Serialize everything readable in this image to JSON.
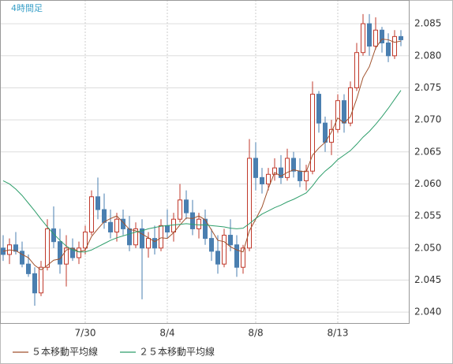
{
  "chart_data": {
    "type": "candlestick",
    "title": "4時間足",
    "categories": [
      null,
      null,
      null,
      null,
      null,
      null,
      null,
      null,
      null,
      null,
      null,
      null,
      null,
      "7/30",
      null,
      null,
      null,
      null,
      null,
      null,
      null,
      null,
      null,
      null,
      null,
      null,
      "8/4",
      null,
      null,
      null,
      null,
      null,
      null,
      null,
      null,
      null,
      null,
      null,
      null,
      null,
      "8/8",
      null,
      null,
      null,
      null,
      null,
      null,
      null,
      null,
      null,
      null,
      null,
      null,
      "8/13",
      null,
      null,
      null,
      null,
      null,
      null,
      null,
      null,
      null,
      null
    ],
    "open": [
      2.05,
      2.049,
      2.0505,
      2.0495,
      2.0475,
      2.046,
      2.043,
      2.047,
      2.053,
      2.051,
      2.0475,
      2.05,
      2.0485,
      2.05,
      2.0525,
      2.058,
      2.056,
      2.054,
      2.0525,
      2.0545,
      2.053,
      2.0505,
      2.053,
      2.05,
      2.0515,
      2.05,
      2.0535,
      2.0525,
      2.0545,
      2.0575,
      2.0555,
      2.053,
      2.0545,
      2.0515,
      2.0495,
      2.0475,
      2.052,
      2.0505,
      2.047,
      2.05,
      2.064,
      2.061,
      2.06,
      2.0615,
      2.0625,
      2.061,
      2.064,
      2.062,
      2.0605,
      2.062,
      2.074,
      2.0695,
      2.0665,
      2.0685,
      2.073,
      2.0695,
      2.075,
      2.0805,
      2.085,
      2.0815,
      2.084,
      2.082,
      2.08,
      2.083
    ],
    "high": [
      2.052,
      2.0515,
      2.0525,
      2.051,
      2.049,
      2.047,
      2.048,
      2.0545,
      2.0565,
      2.053,
      2.052,
      2.0515,
      2.051,
      2.0535,
      2.059,
      2.061,
      2.0585,
      2.056,
      2.0555,
      2.056,
      2.055,
      2.054,
      2.0545,
      2.0525,
      2.0535,
      2.0545,
      2.056,
      2.0555,
      2.06,
      2.059,
      2.0575,
      2.0555,
      2.056,
      2.053,
      2.052,
      2.053,
      2.0545,
      2.052,
      2.0505,
      2.067,
      2.0665,
      2.0625,
      2.0625,
      2.064,
      2.0645,
      2.0655,
      2.065,
      2.064,
      2.063,
      2.076,
      2.0745,
      2.0705,
      2.07,
      2.074,
      2.074,
      2.076,
      2.082,
      2.0865,
      2.0865,
      2.086,
      2.0845,
      2.0835,
      2.084,
      2.084
    ],
    "low": [
      2.048,
      2.0475,
      2.049,
      2.047,
      2.0455,
      2.041,
      2.0425,
      2.0465,
      2.05,
      2.046,
      2.044,
      2.048,
      2.0475,
      2.049,
      2.052,
      2.0545,
      2.053,
      2.0515,
      2.051,
      2.052,
      2.0495,
      2.05,
      2.042,
      2.0485,
      2.049,
      2.0495,
      2.0515,
      2.051,
      2.054,
      2.0545,
      2.052,
      2.0515,
      2.0505,
      2.048,
      2.046,
      2.047,
      2.0495,
      2.0455,
      2.046,
      2.0495,
      2.059,
      2.0585,
      2.059,
      2.0605,
      2.06,
      2.0605,
      2.061,
      2.0595,
      2.059,
      2.0615,
      2.068,
      2.065,
      2.0645,
      2.068,
      2.068,
      2.069,
      2.0745,
      2.08,
      2.08,
      2.081,
      2.0805,
      2.079,
      2.0795,
      2.0815
    ],
    "close": [
      2.049,
      2.0505,
      2.0495,
      2.0475,
      2.046,
      2.043,
      2.047,
      2.053,
      2.051,
      2.0475,
      2.05,
      2.0485,
      2.05,
      2.0525,
      2.058,
      2.056,
      2.054,
      2.0525,
      2.0545,
      2.053,
      2.0505,
      2.053,
      2.05,
      2.0515,
      2.05,
      2.0535,
      2.0525,
      2.0545,
      2.0575,
      2.0555,
      2.053,
      2.0545,
      2.0515,
      2.0495,
      2.0475,
      2.052,
      2.0505,
      2.047,
      2.05,
      2.064,
      2.061,
      2.06,
      2.0615,
      2.0625,
      2.061,
      2.064,
      2.062,
      2.0605,
      2.062,
      2.074,
      2.0695,
      2.0665,
      2.0685,
      2.073,
      2.0695,
      2.075,
      2.0805,
      2.085,
      2.0815,
      2.084,
      2.082,
      2.08,
      2.083,
      2.0825
    ],
    "up_color": "#c0392b",
    "down_color": "#4a7fb0",
    "series": [
      {
        "name": "５本移動平均線",
        "color": "#a0522d",
        "values": [
          2.0495,
          2.0497,
          2.0496,
          2.049,
          2.0485,
          2.0473,
          2.0466,
          2.0473,
          2.0481,
          2.0483,
          2.0497,
          2.05,
          2.0494,
          2.0497,
          2.0518,
          2.053,
          2.0541,
          2.0546,
          2.055,
          2.054,
          2.0529,
          2.0527,
          2.0522,
          2.0516,
          2.051,
          2.0516,
          2.0515,
          2.0524,
          2.0536,
          2.0547,
          2.0546,
          2.055,
          2.0544,
          2.0528,
          2.0512,
          2.051,
          2.0502,
          2.0497,
          2.0494,
          2.0527,
          2.0545,
          2.0564,
          2.0593,
          2.0618,
          2.0612,
          2.0618,
          2.0622,
          2.062,
          2.0619,
          2.0645,
          2.0656,
          2.0665,
          2.0681,
          2.0703,
          2.0695,
          2.0705,
          2.0733,
          2.0766,
          2.0783,
          2.0812,
          2.0826,
          2.0825,
          2.0821,
          2.0823
        ]
      },
      {
        "name": "２５本移動平均線",
        "color": "#2e9e6b",
        "values": [
          2.0605,
          2.06,
          2.0592,
          2.0582,
          2.057,
          2.0558,
          2.0545,
          2.0533,
          2.0522,
          2.0512,
          2.0503,
          2.0497,
          2.0494,
          2.0494,
          2.0497,
          2.0502,
          2.0507,
          2.0512,
          2.0516,
          2.0519,
          2.0522,
          2.0525,
          2.0527,
          2.053,
          2.0532,
          2.0534,
          2.0535,
          2.0536,
          2.0537,
          2.0538,
          2.0537,
          2.0536,
          2.0536,
          2.0535,
          2.0534,
          2.0533,
          2.0531,
          2.053,
          2.0531,
          2.0538,
          2.0546,
          2.0553,
          2.0558,
          2.0563,
          2.0567,
          2.0572,
          2.0576,
          2.0581,
          2.0586,
          2.0597,
          2.061,
          2.062,
          2.0628,
          2.0638,
          2.0645,
          2.0652,
          2.0662,
          2.0673,
          2.0682,
          2.0693,
          2.0705,
          2.0718,
          2.0732,
          2.0746
        ]
      }
    ],
    "ylim": [
      2.0383,
      2.0887
    ],
    "yticks": [
      {
        "value": 2.04,
        "label": "2.040"
      },
      2.045,
      {
        "value": 2.05,
        "label": "2.050"
      },
      2.055,
      {
        "value": 2.06,
        "label": "2.060"
      },
      2.065,
      {
        "value": 2.07,
        "label": "2.070"
      },
      2.075,
      {
        "value": 2.08,
        "label": "2.080"
      },
      2.085
    ],
    "grid": true
  }
}
